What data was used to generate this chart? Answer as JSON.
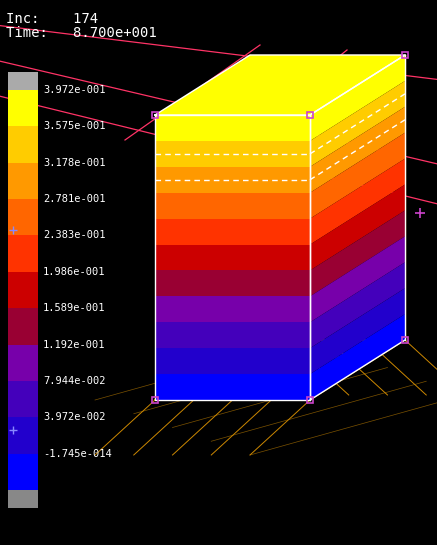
{
  "background_color": "#000000",
  "title_line1": "Inc:    174",
  "title_line2": "Time:   8.700e+001",
  "title_color": "#ffffff",
  "title_fontsize": 10,
  "colorbar_values": [
    "3.972e-001",
    "3.575e-001",
    "3.178e-001",
    "2.781e-001",
    "2.383e-001",
    "1.986e-001",
    "1.589e-001",
    "1.192e-001",
    "7.944e-002",
    "3.972e-002",
    "-1.745e-014"
  ],
  "colorbar_colors": [
    "#ffff00",
    "#ffcc00",
    "#ff9900",
    "#ff6600",
    "#ff3300",
    "#cc0000",
    "#990033",
    "#7700aa",
    "#4400bb",
    "#2200cc",
    "#0000ff"
  ],
  "n_bands": 11,
  "grid_color_pink": "#ff3366",
  "grid_color_orange": "#cc8800",
  "node_color": "#cc44cc",
  "white": "#ffffff"
}
